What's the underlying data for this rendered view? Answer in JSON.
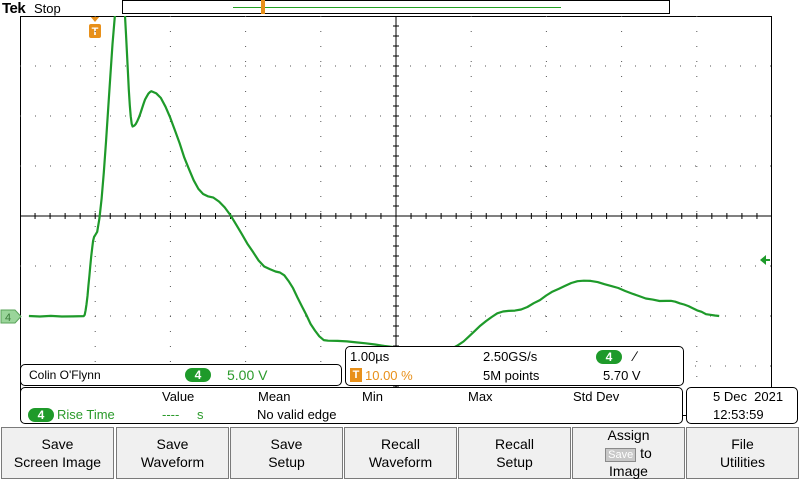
{
  "header": {
    "brand": "Tek",
    "run_state": "Stop"
  },
  "trigger_marker_label": "T",
  "channel_marker_label": "4",
  "channel": {
    "number": "4",
    "owner_label": "Colin O'Flynn",
    "scale": "5.00 V"
  },
  "timebase": {
    "time_per_div": "1.00µs",
    "sample_rate": "2.50GS/s",
    "trigger_position": "10.00 %",
    "record_length": "5M points",
    "trigger_source": "4",
    "trigger_slope_symbol": "∕",
    "trigger_level": "5.70 V"
  },
  "measurements": {
    "headers": {
      "value": "Value",
      "mean": "Mean",
      "min": "Min",
      "max": "Max",
      "stddev": "Std Dev"
    },
    "row": {
      "channel": "4",
      "name": "Rise Time",
      "value": "----",
      "unit": "s",
      "status": "No valid edge"
    }
  },
  "datetime": {
    "date": "5 Dec  2021",
    "time": "12:53:59"
  },
  "softkeys": [
    {
      "line1": "Save",
      "line2": "Screen Image"
    },
    {
      "line1": "Save",
      "line2": "Waveform"
    },
    {
      "line1": "Save",
      "line2": "Setup"
    },
    {
      "line1": "Recall",
      "line2": "Waveform"
    },
    {
      "line1": "Recall",
      "line2": "Setup"
    },
    {
      "line1": "Assign",
      "mid_box": "Save",
      "mid_text": "to",
      "line3": "Image"
    },
    {
      "line1": "File",
      "line2": "Utilities"
    }
  ],
  "colors": {
    "channel4": "#1e9a2a",
    "trigger": "#e8901a",
    "background": "#ffffff",
    "grid": "#000000"
  },
  "waveform": {
    "time_per_div_us": 1.0,
    "volts_per_div": 5.0,
    "trigger_time_us": 0.0,
    "description_points_us_V": [
      [
        -1.9,
        0.0
      ],
      [
        -0.15,
        0.0
      ],
      [
        0.0,
        8.0
      ],
      [
        0.35,
        33.5
      ],
      [
        0.5,
        19.0
      ],
      [
        0.75,
        22.5
      ],
      [
        1.5,
        12.0
      ],
      [
        2.4,
        4.5
      ],
      [
        3.1,
        -2.5
      ],
      [
        4.6,
        -3.5
      ],
      [
        5.5,
        0.5
      ],
      [
        6.5,
        3.5
      ],
      [
        7.6,
        1.5
      ],
      [
        8.3,
        0.0
      ]
    ]
  }
}
